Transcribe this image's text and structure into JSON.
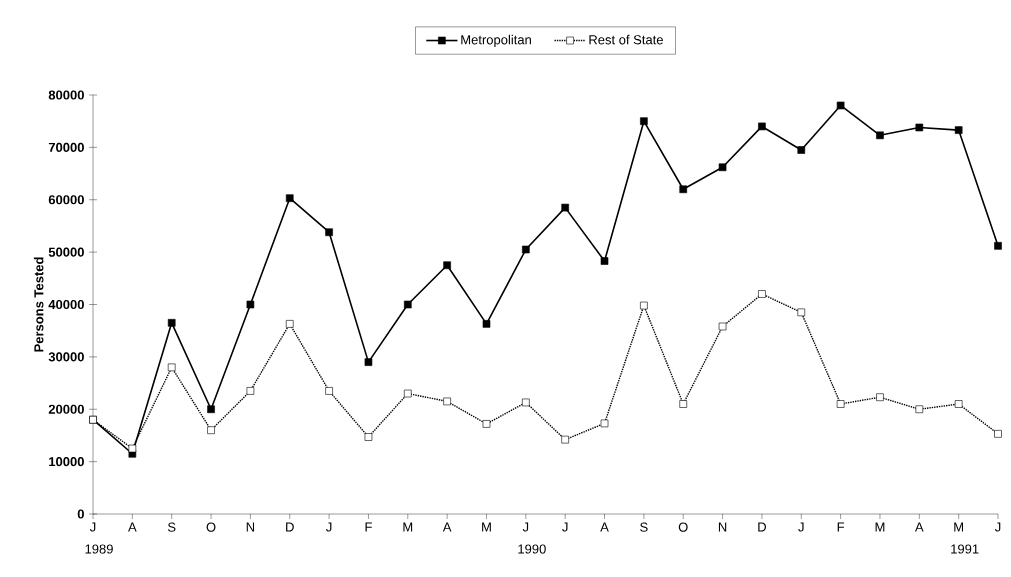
{
  "chart_data": {
    "type": "line",
    "ylabel": "Persons Tested",
    "categories": [
      "J 1989",
      "A",
      "S",
      "O",
      "N",
      "D",
      "J",
      "F",
      "M",
      "A",
      "M",
      "J 1990",
      "J",
      "A",
      "S",
      "O",
      "N",
      "D",
      "J",
      "F",
      "M",
      "A",
      "M 1991",
      "J"
    ],
    "series": [
      {
        "name": "Metropolitan",
        "color": "#000000",
        "line_style": "solid",
        "values": [
          18000,
          11500,
          36500,
          20000,
          40000,
          60300,
          53800,
          29000,
          40000,
          47500,
          36300,
          50500,
          58500,
          48300,
          75000,
          62000,
          66200,
          74000,
          69500,
          78000,
          72300,
          73800,
          73300,
          51200
        ]
      },
      {
        "name": "Rest of State",
        "color": "#000000",
        "line_style": "dotted",
        "values": [
          18000,
          12500,
          28000,
          16000,
          23500,
          36300,
          23500,
          14700,
          23000,
          21500,
          17200,
          21300,
          14200,
          17300,
          39800,
          21000,
          35800,
          42000,
          38500,
          21000,
          22300,
          20000,
          21000,
          15300
        ]
      }
    ],
    "ylim": [
      0,
      80000
    ],
    "yticks": [
      0,
      10000,
      20000,
      30000,
      40000,
      50000,
      60000,
      70000,
      80000
    ],
    "marker": "square",
    "legend": "top",
    "grid": false
  }
}
